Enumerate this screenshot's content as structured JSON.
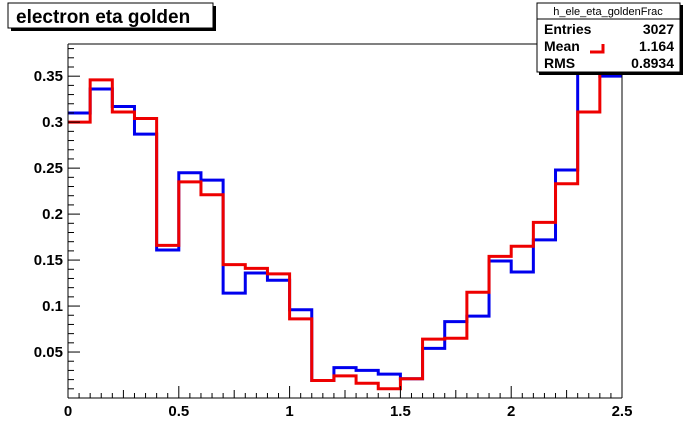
{
  "chart_data": {
    "type": "line",
    "title": "electron eta golden",
    "xlabel": "",
    "ylabel": "",
    "xlim": [
      0,
      2.5
    ],
    "ylim": [
      0,
      0.385
    ],
    "x_ticks": [
      0,
      0.5,
      1,
      1.5,
      2,
      2.5
    ],
    "x_tick_labels": [
      "0",
      "0.5",
      "1",
      "1.5",
      "2",
      "2.5"
    ],
    "y_ticks": [
      0.05,
      0.1,
      0.15,
      0.2,
      0.25,
      0.3,
      0.35
    ],
    "y_tick_labels": [
      "0.05",
      "0.1",
      "0.15",
      "0.2",
      "0.25",
      "0.3",
      "0.35"
    ],
    "grid": false,
    "bin_edges": [
      0,
      0.1,
      0.2,
      0.3,
      0.4,
      0.5,
      0.6,
      0.7,
      0.8,
      0.9,
      1.0,
      1.1,
      1.2,
      1.3,
      1.4,
      1.5,
      1.6,
      1.7,
      1.8,
      1.9,
      2.0,
      2.1,
      2.2,
      2.3,
      2.4,
      2.5
    ],
    "series": [
      {
        "color": "#0000ee",
        "values": [
          0.31,
          0.336,
          0.317,
          0.287,
          0.161,
          0.245,
          0.237,
          0.114,
          0.136,
          0.128,
          0.096,
          0.019,
          0.033,
          0.03,
          0.026,
          0.021,
          0.054,
          0.083,
          0.089,
          0.149,
          0.137,
          0.172,
          0.248,
          0.38,
          0.35
        ]
      },
      {
        "color": "#ee0000",
        "values": [
          0.3,
          0.346,
          0.311,
          0.304,
          0.166,
          0.235,
          0.221,
          0.145,
          0.141,
          0.135,
          0.086,
          0.019,
          0.024,
          0.016,
          0.01,
          0.021,
          0.064,
          0.065,
          0.115,
          0.154,
          0.165,
          0.191,
          0.233,
          0.311,
          0.385
        ]
      }
    ],
    "stats_box": {
      "name": "h_ele_eta_goldenFrac",
      "rows": [
        {
          "label": "Entries",
          "value": "3027"
        },
        {
          "label": "Mean",
          "value": "1.164"
        },
        {
          "label": "RMS",
          "value": "0.8934"
        }
      ],
      "legend_line_color": "#ee0000"
    }
  }
}
